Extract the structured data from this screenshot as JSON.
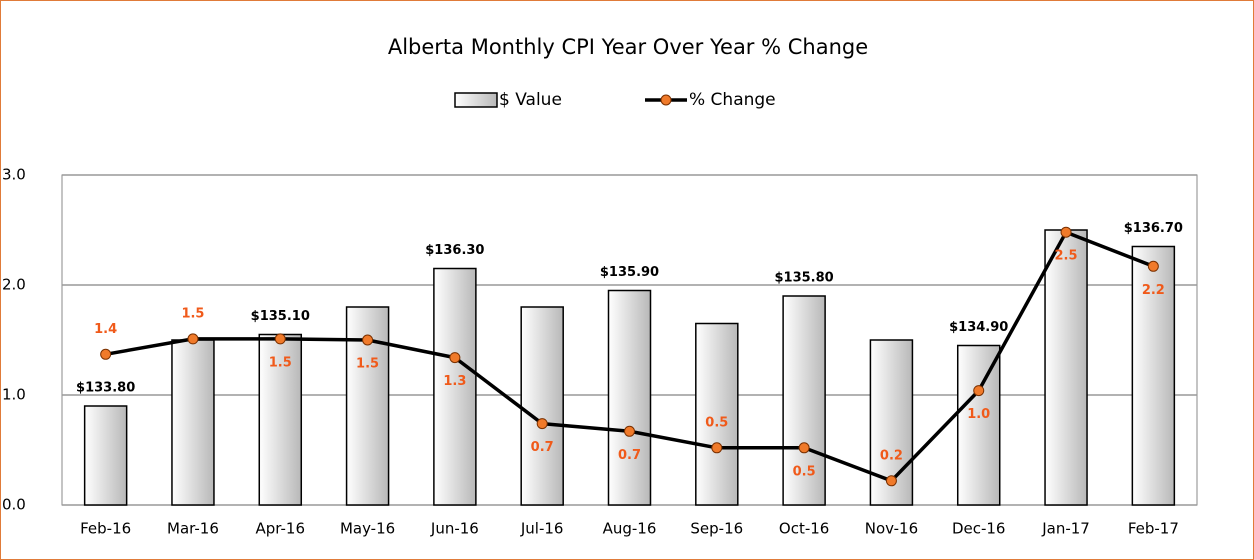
{
  "chart_data": {
    "type": "combo",
    "title": "Alberta Monthly CPI Year Over Year % Change",
    "categories": [
      "Feb-16",
      "Mar-16",
      "Apr-16",
      "May-16",
      "Jun-16",
      "Jul-16",
      "Aug-16",
      "Sep-16",
      "Oct-16",
      "Nov-16",
      "Dec-16",
      "Jan-17",
      "Feb-17"
    ],
    "series": [
      {
        "name": "$ Value",
        "type": "bar",
        "axis": "y2",
        "color": "#d9d9d9",
        "values": [
          133.8,
          135.0,
          135.1,
          135.6,
          136.3,
          135.6,
          135.9,
          135.3,
          135.8,
          135.0,
          134.9,
          137.0,
          136.7
        ],
        "value_labels": [
          "$133.80",
          null,
          "$135.10",
          null,
          "$136.30",
          null,
          "$135.90",
          null,
          "$135.80",
          null,
          "$134.90",
          null,
          "$136.70"
        ]
      },
      {
        "name": "% Change",
        "type": "line",
        "color": "#f07a2a",
        "values": [
          1.37,
          1.51,
          1.51,
          1.5,
          1.34,
          0.74,
          0.67,
          0.52,
          0.52,
          0.22,
          1.04,
          2.48,
          2.17
        ],
        "value_labels": [
          "1.4",
          "1.5",
          "1.5",
          "1.5",
          "1.3",
          "0.7",
          "0.7",
          "0.5",
          "0.5",
          "0.2",
          "1.0",
          "2.5",
          "2.2"
        ]
      }
    ],
    "ylim": [
      0,
      3
    ],
    "yticks": [
      {
        "value": 0,
        "label": "0.0"
      },
      {
        "value": 1,
        "label": "1.0"
      },
      {
        "value": 2,
        "label": "2.0"
      },
      {
        "value": 3,
        "label": "3.0"
      }
    ],
    "y2lim": [
      132,
      138
    ],
    "grid": true
  }
}
